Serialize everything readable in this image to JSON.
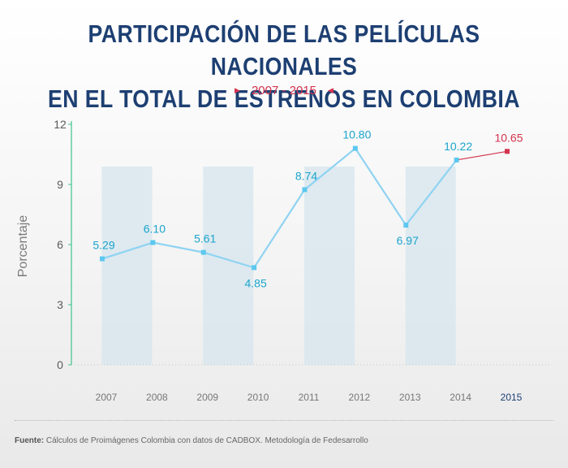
{
  "title_line1": "PARTICIPACIÓN DE LAS PELÍCULAS NACIONALES",
  "title_line2": "EN EL TOTAL DE ESTRENOS EN COLOMBIA",
  "subtitle": "2007 - 2015",
  "source_label": "Fuente:",
  "source_text": " Cálculos de Proimágenes Colombia con datos de CADBOX. Metodología de Fedesarrollo",
  "colors": {
    "title": "#1d3f72",
    "line": "#8fd3f2",
    "marker": "#5cc8ef",
    "label": "#1ba4cc",
    "highlight": "#d3344e",
    "axis": "#3cc38a",
    "band": "#d6e6ee",
    "tick_text": "#5a5a5a",
    "xlabel_last": "#1d3f72"
  },
  "chart_data": {
    "type": "line",
    "categories": [
      "2007",
      "2008",
      "2009",
      "2010",
      "2011",
      "2012",
      "2013",
      "2014",
      "2015"
    ],
    "values": [
      5.29,
      6.1,
      5.61,
      4.85,
      8.74,
      10.8,
      6.97,
      10.22,
      10.65
    ],
    "value_labels": [
      "5.29",
      "6.10",
      "5.61",
      "4.85",
      "8.74",
      "10.80",
      "6.97",
      "10.22",
      "10.65"
    ],
    "ylabel": "Porcentaje",
    "ylim": [
      0,
      12
    ],
    "yticks": [
      0,
      3,
      6,
      9,
      12
    ],
    "highlight_index": 8,
    "shaded_columns": [
      "2007",
      "2009",
      "2011",
      "2013"
    ]
  }
}
